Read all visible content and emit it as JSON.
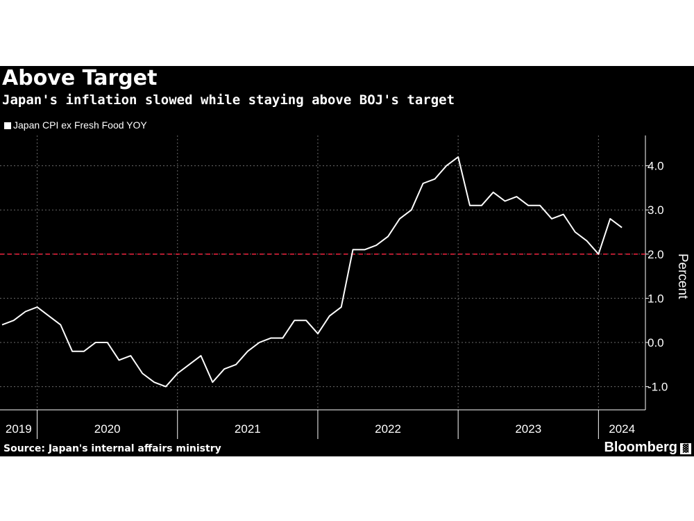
{
  "header": {
    "title": "Above Target",
    "subtitle": "Japan's inflation slowed while staying above BOJ's target"
  },
  "footer": {
    "source": "Source: Japan's internal affairs ministry",
    "brand": "Bloomberg"
  },
  "colors": {
    "background": "#000000",
    "line": "#ffffff",
    "target": "#e0203a",
    "grid": "#6b6b6b"
  },
  "chart_data": {
    "type": "line",
    "title": "Above Target",
    "subtitle": "Japan's inflation slowed while staying above BOJ's target",
    "ylabel": "Percent",
    "ylim": [
      -1.5,
      4.6
    ],
    "yticks": [
      4.0,
      3.0,
      2.0,
      1.0,
      0.0,
      -1.0
    ],
    "ytick_labels": [
      "4.0",
      "3.0",
      "2.0",
      "1.0",
      "0.0",
      "-1.0"
    ],
    "legend": "top-left",
    "grid": true,
    "x": [
      "2019-10",
      "2019-11",
      "2019-12",
      "2020-01",
      "2020-02",
      "2020-03",
      "2020-04",
      "2020-05",
      "2020-06",
      "2020-07",
      "2020-08",
      "2020-09",
      "2020-10",
      "2020-11",
      "2020-12",
      "2021-01",
      "2021-02",
      "2021-03",
      "2021-04",
      "2021-05",
      "2021-06",
      "2021-07",
      "2021-08",
      "2021-09",
      "2021-10",
      "2021-11",
      "2021-12",
      "2022-01",
      "2022-02",
      "2022-03",
      "2022-04",
      "2022-05",
      "2022-06",
      "2022-07",
      "2022-08",
      "2022-09",
      "2022-10",
      "2022-11",
      "2022-12",
      "2023-01",
      "2023-02",
      "2023-03",
      "2023-04",
      "2023-05",
      "2023-06",
      "2023-07",
      "2023-08",
      "2023-09",
      "2023-10",
      "2023-11",
      "2023-12",
      "2024-01",
      "2024-02",
      "2024-03"
    ],
    "x_tick_labels": [
      "2019",
      "2020",
      "2021",
      "2022",
      "2023",
      "2024"
    ],
    "series": [
      {
        "name": "Japan CPI ex Fresh Food YOY",
        "color": "#ffffff",
        "values": [
          0.4,
          0.5,
          0.7,
          0.8,
          0.6,
          0.4,
          -0.2,
          -0.2,
          0.0,
          0.0,
          -0.4,
          -0.3,
          -0.7,
          -0.9,
          -1.0,
          -0.7,
          -0.5,
          -0.3,
          -0.9,
          -0.6,
          -0.5,
          -0.2,
          0.0,
          0.1,
          0.1,
          0.5,
          0.5,
          0.2,
          0.6,
          0.8,
          2.1,
          2.1,
          2.2,
          2.4,
          2.8,
          3.0,
          3.6,
          3.7,
          4.0,
          4.2,
          3.1,
          3.1,
          3.4,
          3.2,
          3.3,
          3.1,
          3.1,
          2.8,
          2.9,
          2.5,
          2.3,
          2.0,
          2.8,
          2.6
        ]
      }
    ],
    "reference_line": {
      "value": 2.0,
      "style": "dashed",
      "color": "#e0203a"
    }
  }
}
